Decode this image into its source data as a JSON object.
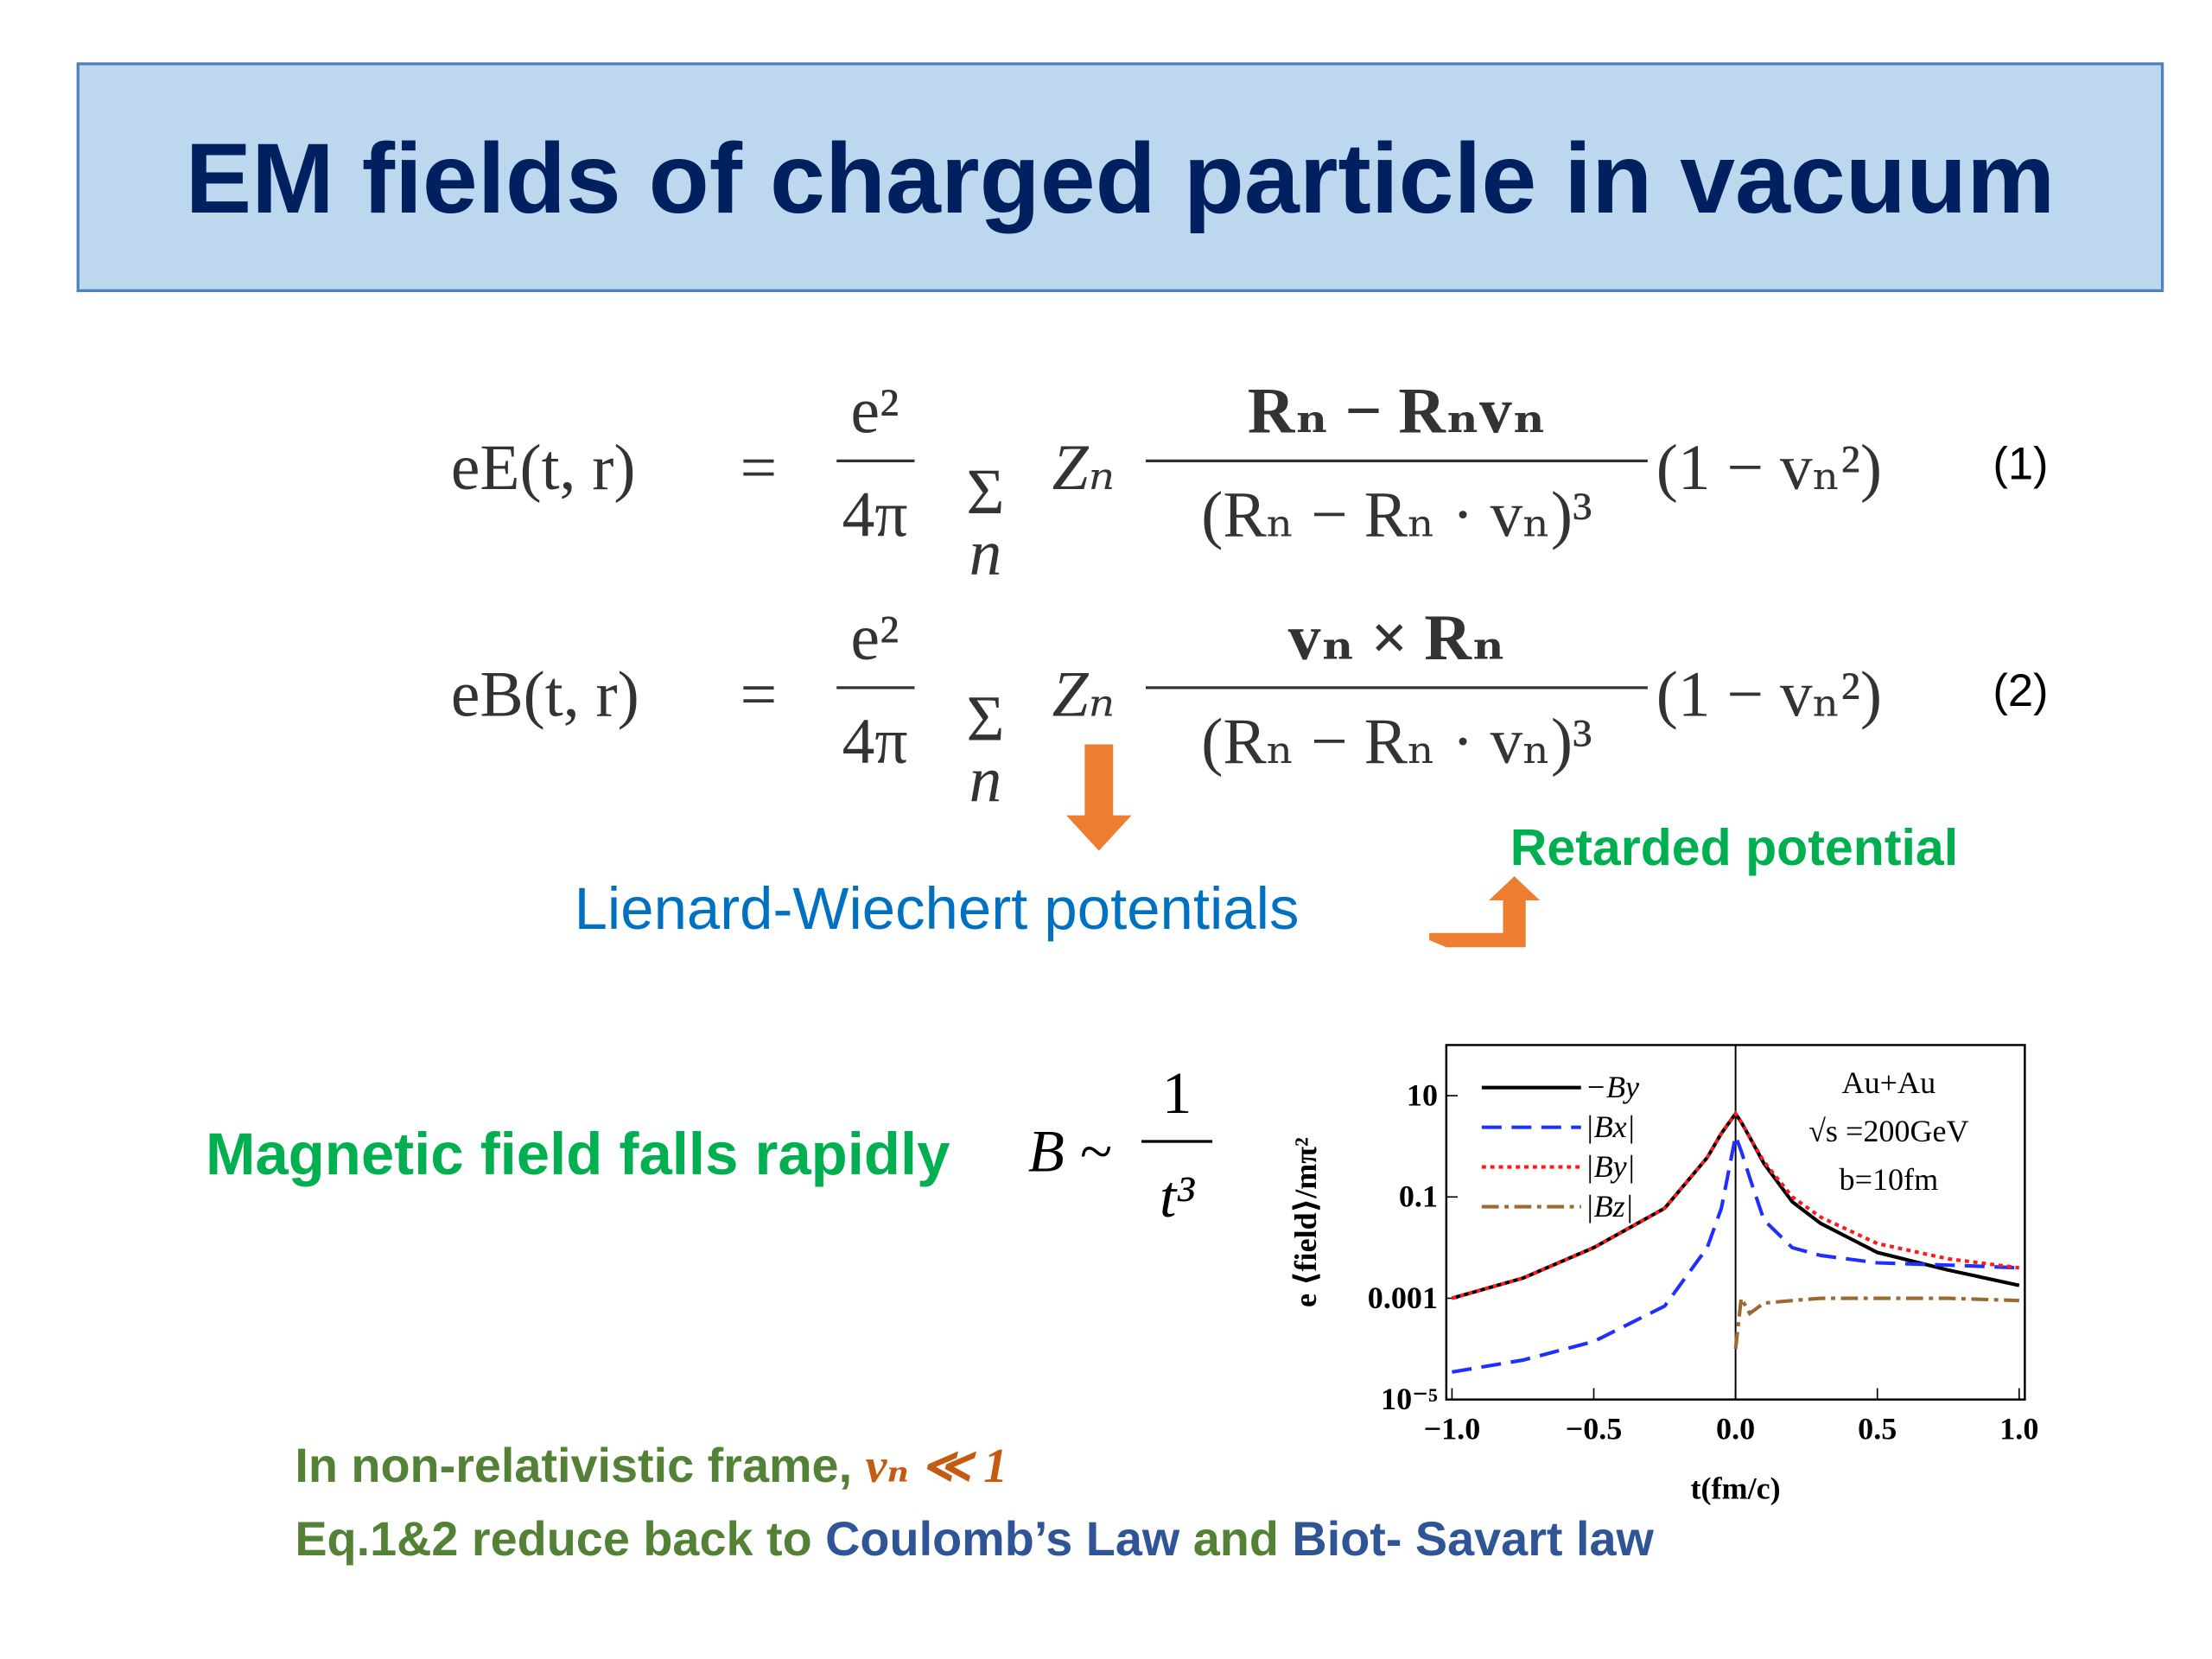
{
  "title": "EM fields of charged particle in vacuum",
  "equations": [
    {
      "lhs": "eE(t, r)",
      "equals": "=",
      "pre_num": "e²",
      "pre_den": "4π",
      "sum": "Σ",
      "index": "n",
      "factor": "Zₙ",
      "num": "Rₙ − Rₙvₙ",
      "den": "(Rₙ − Rₙ · vₙ)³",
      "tail": "(1 − vₙ²)",
      "label": "(1)"
    },
    {
      "lhs": "eB(t, r)",
      "equals": "=",
      "pre_num": "e²",
      "pre_den": "4π",
      "sum": "Σ",
      "index": "n",
      "factor": "Zₙ",
      "num": "vₙ × Rₙ",
      "den": "(Rₙ − Rₙ · vₙ)³",
      "tail": "(1 − vₙ²)",
      "label": "(2)"
    }
  ],
  "lienard": "Lienard-Wiechert potentials",
  "retarded": "Retarded potential",
  "falls": {
    "text": "Magnetic field falls rapidly",
    "lhs": "B ~",
    "num": "1",
    "den": "t³"
  },
  "bottom": {
    "line1": [
      "In non-relativistic frame, ",
      "vₙ ≪ 1"
    ],
    "line2": [
      "Eq.1&2 reduce back to ",
      "Coulomb’s Law",
      " and ",
      "Biot- Savart law"
    ]
  },
  "chart_data": {
    "type": "line",
    "xlabel": "t(fm/c)",
    "ylabel": "e ⟨field⟩/mπ²",
    "log_y": true,
    "grid": false,
    "legend": "upper left",
    "annotations": [
      "Au+Au",
      "√s =200GeV",
      "b=10fm"
    ],
    "x": [
      -1,
      -0.75,
      -0.5,
      -0.25,
      -0.1,
      -0.05,
      0,
      0.02,
      0.05,
      0.1,
      0.2,
      0.3,
      0.5,
      0.75,
      1
    ],
    "xlim": [
      -1.02,
      1.02
    ],
    "xticks": [
      {
        "value": -1,
        "label": "−1.0"
      },
      {
        "value": -0.5,
        "label": "−0.5"
      },
      {
        "value": 0,
        "label": "0.0"
      },
      {
        "value": 0.5,
        "label": "0.5"
      },
      {
        "value": 1,
        "label": "1.0"
      }
    ],
    "ylim": [
      1e-05,
      100
    ],
    "yticks": [
      {
        "value": 1e-05,
        "label": "10⁻⁵"
      },
      0.001,
      0.1,
      10
    ],
    "series": [
      {
        "name": "−By",
        "color": "#000000",
        "dash": "",
        "values": [
          0.001,
          0.0025,
          0.01,
          0.06,
          0.6,
          1.8,
          4.4,
          3,
          1.5,
          0.46,
          0.08,
          0.03,
          0.008,
          0.0036,
          0.0018
        ]
      },
      {
        "name": "|Bx|",
        "color": "#1f2fff",
        "dash": "14 7",
        "values": [
          3.5e-05,
          6e-05,
          0.00014,
          0.0007,
          0.01,
          0.06,
          1.6,
          0.8,
          0.24,
          0.035,
          0.01,
          0.007,
          0.005,
          0.0045,
          0.004
        ]
      },
      {
        "name": "|By|",
        "color": "#ff1a1a",
        "dash": "3 3",
        "values": [
          0.001,
          0.0025,
          0.01,
          0.06,
          0.6,
          1.8,
          4.4,
          3,
          1.5,
          0.5,
          0.1,
          0.04,
          0.012,
          0.006,
          0.004
        ]
      },
      {
        "name": "|Bz|",
        "color": "#9a6a32",
        "dash": "12 4 3 4",
        "values": [
          null,
          null,
          null,
          null,
          null,
          null,
          0.0001,
          0.001,
          0.0005,
          0.0008,
          0.0009,
          0.001,
          0.001,
          0.001,
          0.0009
        ]
      }
    ]
  }
}
